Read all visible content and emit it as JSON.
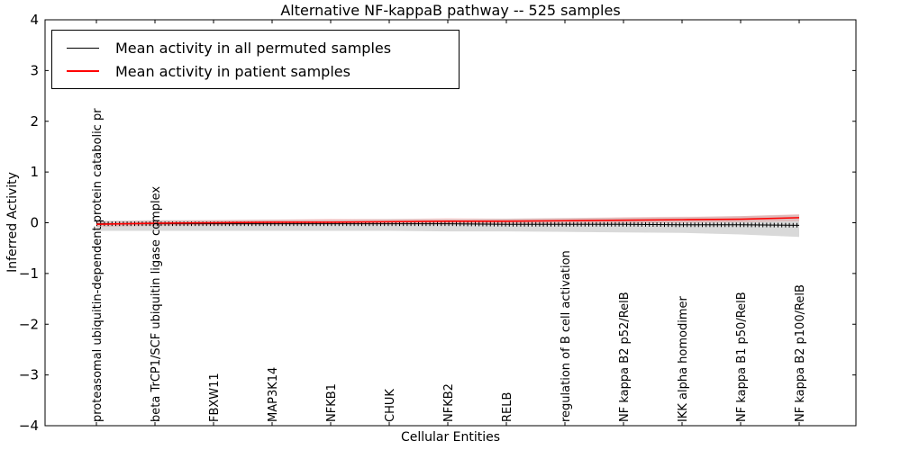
{
  "chart_data": {
    "type": "line",
    "title": "Alternative NF-kappaB pathway -- 525 samples",
    "xlabel": "Cellular Entities",
    "ylabel": "Inferred Activity",
    "ylim": [
      -4,
      4
    ],
    "yticks": [
      4,
      3,
      2,
      1,
      0,
      -1,
      -2,
      -3,
      -4
    ],
    "grid": false,
    "legend_position": "upper left",
    "categories": [
      "proteasomal ubiquitin-dependent protein catabolic pr",
      "beta TrCP1/SCF ubiquitin ligase complex",
      "FBXW11",
      "MAP3K14",
      "NFKB1",
      "CHUK",
      "NFKB2",
      "RELB",
      "regulation of B cell activation",
      "NF kappa B2 p52/RelB",
      "IKK alpha homodimer",
      "NF kappa B1 p50/RelB",
      "NF kappa B2 p100/RelB"
    ],
    "series": [
      {
        "name": "Mean activity in all permuted samples",
        "color": "#000000",
        "line_width": 1,
        "marker": "vertical-tick",
        "values": [
          -0.02,
          -0.02,
          -0.02,
          -0.02,
          -0.02,
          -0.02,
          -0.02,
          -0.03,
          -0.03,
          -0.03,
          -0.04,
          -0.04,
          -0.05
        ],
        "band_upper": [
          0.04,
          0.05,
          0.05,
          0.06,
          0.06,
          0.07,
          0.07,
          0.08,
          0.09,
          0.1,
          0.11,
          0.13,
          0.16
        ],
        "band_lower": [
          -0.16,
          -0.16,
          -0.16,
          -0.16,
          -0.16,
          -0.16,
          -0.17,
          -0.17,
          -0.18,
          -0.19,
          -0.2,
          -0.23,
          -0.28
        ],
        "band_color": "rgba(120,120,120,0.28)"
      },
      {
        "name": "Mean activity in patient samples",
        "color": "#ff0000",
        "line_width": 1.6,
        "marker": "none",
        "values": [
          -0.03,
          -0.01,
          0.0,
          0.01,
          0.01,
          0.02,
          0.03,
          0.03,
          0.04,
          0.05,
          0.06,
          0.07,
          0.1
        ],
        "band_upper": [
          0.02,
          0.04,
          0.05,
          0.06,
          0.08,
          0.07,
          0.09,
          0.08,
          0.09,
          0.11,
          0.12,
          0.13,
          0.17
        ],
        "band_lower": [
          -0.08,
          -0.06,
          -0.05,
          -0.04,
          -0.03,
          -0.03,
          -0.03,
          -0.02,
          -0.02,
          -0.01,
          0.0,
          0.01,
          0.03
        ],
        "band_color": "rgba(255,0,0,0.14)"
      }
    ]
  }
}
